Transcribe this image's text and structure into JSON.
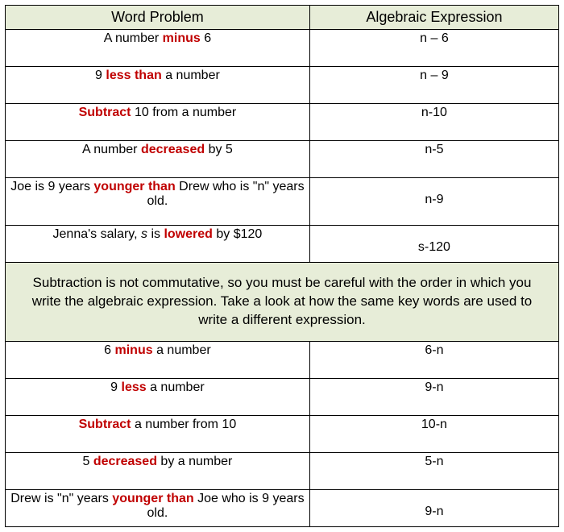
{
  "headers": {
    "left": "Word Problem",
    "right": "Algebraic Expression"
  },
  "rows": [
    {
      "pre": "A number ",
      "kw": "minus",
      "post": " 6",
      "expr": "n – 6"
    },
    {
      "pre": "9 ",
      "kw": "less than",
      "post": " a number",
      "expr": "n – 9"
    },
    {
      "pre": "",
      "kw": "Subtract",
      "post": " 10 from a number",
      "expr": "n-10"
    },
    {
      "pre": "A number ",
      "kw": "decreased",
      "post": " by 5",
      "expr": "n-5"
    },
    {
      "pre": "Joe is 9 years ",
      "kw": "younger than",
      "post": " Drew who is \"n\" years old.",
      "expr": "n-9"
    },
    {
      "pre": "Jenna's salary, ",
      "pre2": "s",
      "pre3": " is ",
      "kw": "lowered",
      "post": " by $120",
      "expr": "s-120"
    }
  ],
  "note": "Subtraction is not commutative, so you must be careful with the order in which you write the algebraic expression.  Take a look at how the same key words are used to write a different expression.",
  "rows2": [
    {
      "pre": "6 ",
      "kw": "minus",
      "post": " a number",
      "expr": "6-n"
    },
    {
      "pre": "9 ",
      "kw": "less",
      "post": " a number",
      "expr": "9-n"
    },
    {
      "pre": "",
      "kw": "Subtract",
      "post": " a number from 10",
      "expr": "10-n"
    },
    {
      "pre": "5 ",
      "kw": "decreased",
      "post": " by a number",
      "expr": "5-n"
    },
    {
      "pre": "Drew is \"n\" years ",
      "kw": "younger than",
      "post": " Joe who is 9 years old.",
      "expr": "9-n"
    }
  ],
  "colors": {
    "headerBg": "#e7edd8",
    "keyword": "#c00000",
    "border": "#000000",
    "text": "#000000"
  }
}
